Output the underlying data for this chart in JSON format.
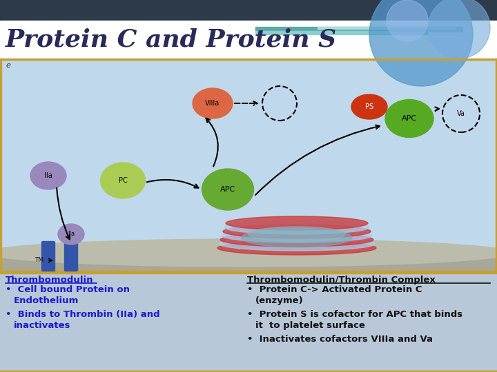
{
  "title": "Protein C and Protein S",
  "title_color": "#2A2A5A",
  "title_fontsize": 26,
  "top_bar_color": "#2D3A4A",
  "teal_bar_color": "#2E7D7D",
  "teal_light_color": "#5BAAA8",
  "teal_lightest_color": "#8ECECE",
  "white_bar_color": "#FFFFFF",
  "diagram_bg": "#B8CDE8",
  "bottom_bg": "#B8C8D8",
  "ground_color": "#A8A898",
  "blue_circle_color": "#5599CC",
  "blue_circle2_color": "#77AADD",
  "left_col_header": "Thrombomodulin",
  "left_col_bullets": [
    "Cell bound Protein on\nEndothelium",
    "Binds to Thrombin (IIa) and\ninactivates"
  ],
  "right_col_header": "Thrombomodulin/Thrombin Complex",
  "right_col_bullets": [
    "Protein C-> Activated Protein C\n(enzyme)",
    "Protein S is cofactor for APC that binds\nit  to platelet surface",
    "Inactivates cofactors VIIIa and Va"
  ],
  "text_color_left": "#1A1ACD",
  "text_color_right": "#111111",
  "border_color": "#C8A030",
  "iia_color": "#9988BB",
  "pc_color": "#AACC55",
  "apc_color": "#66AA33",
  "viiia_color": "#DD6644",
  "ps_color": "#CC3311",
  "ps_apc_color": "#55AA22",
  "tm_color": "#3355AA"
}
